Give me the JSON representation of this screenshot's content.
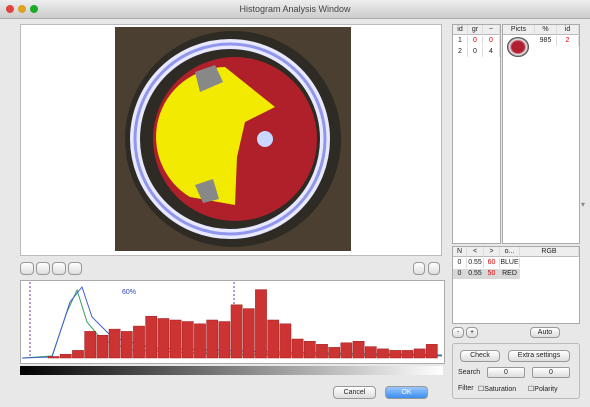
{
  "window": {
    "title": "Histogram Analysis Window"
  },
  "list_table": {
    "headers": [
      "id",
      "gr",
      "~"
    ],
    "rows": [
      [
        "1",
        "0",
        "0"
      ],
      [
        "2",
        "0",
        "4"
      ]
    ]
  },
  "pict_table": {
    "headers": [
      "Picts",
      "%",
      "id"
    ],
    "rows": [
      [
        "985",
        "2"
      ]
    ]
  },
  "channel_table": {
    "headers": [
      "N",
      "<",
      ">",
      "o...",
      "RGB"
    ],
    "rows": [
      [
        "0",
        "0.55",
        "60",
        "BLUE"
      ],
      [
        "0",
        "0.55",
        "50",
        "RED"
      ]
    ]
  },
  "buttons": {
    "minus": "-",
    "plus": "+",
    "auto": "Auto",
    "check": "Check",
    "extra": "Extra settings",
    "cancel": "Cancel",
    "ok": "OK"
  },
  "search": {
    "label": "Search",
    "from": "0",
    "to": "0"
  },
  "filter": {
    "label": "Filter",
    "options": [
      "Saturation",
      "Polarity"
    ]
  },
  "histogram": {
    "annotation": "60%",
    "ylim": [
      0,
      100
    ],
    "values": [
      2,
      5,
      10,
      35,
      30,
      38,
      35,
      42,
      55,
      52,
      50,
      48,
      45,
      50,
      48,
      70,
      65,
      90,
      50,
      45,
      25,
      22,
      18,
      14,
      20,
      22,
      15,
      12,
      10,
      10,
      12,
      18
    ]
  }
}
